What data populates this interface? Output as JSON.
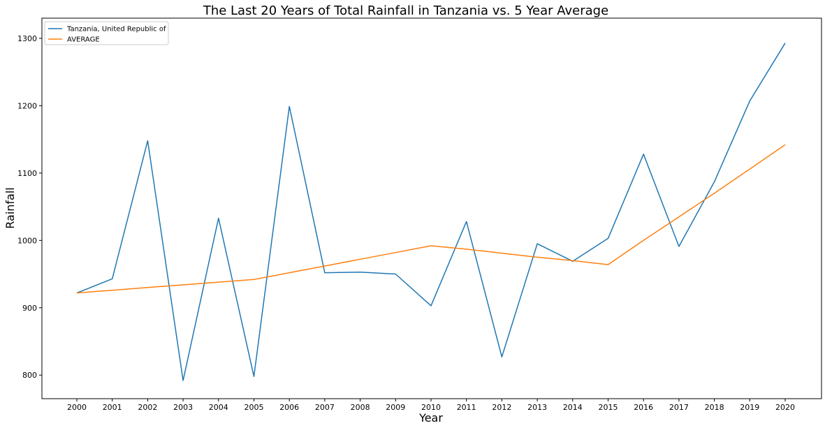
{
  "chart_data": {
    "type": "line",
    "title": "The Last 20 Years of Total Rainfall in Tanzania vs. 5 Year Average",
    "xlabel": "Year",
    "ylabel": "Rainfall",
    "x": [
      "2000",
      "2001",
      "2002",
      "2003",
      "2004",
      "2005",
      "2006",
      "2007",
      "2008",
      "2009",
      "2010",
      "2011",
      "2012",
      "2013",
      "2014",
      "2015",
      "2016",
      "2017",
      "2018",
      "2019",
      "2020"
    ],
    "yticks": [
      800,
      900,
      1000,
      1100,
      1200,
      1300
    ],
    "ylim": [
      765,
      1330
    ],
    "grid": false,
    "legend_position": "top-left",
    "series": [
      {
        "name": "Tanzania, United Republic of",
        "color": "#1f77b4",
        "values": [
          922,
          943,
          1148,
          792,
          1033,
          798,
          1199,
          952,
          953,
          950,
          903,
          1028,
          827,
          995,
          969,
          1003,
          1128,
          991,
          1087,
          1207,
          1293
        ]
      },
      {
        "name": "AVERAGE",
        "color": "#ff7f0e",
        "values": [
          922,
          926,
          930,
          934,
          938,
          942,
          952,
          962,
          972,
          982,
          992,
          987,
          981,
          975,
          970,
          964,
          1000,
          1035,
          1070,
          1106,
          1142
        ]
      }
    ]
  }
}
